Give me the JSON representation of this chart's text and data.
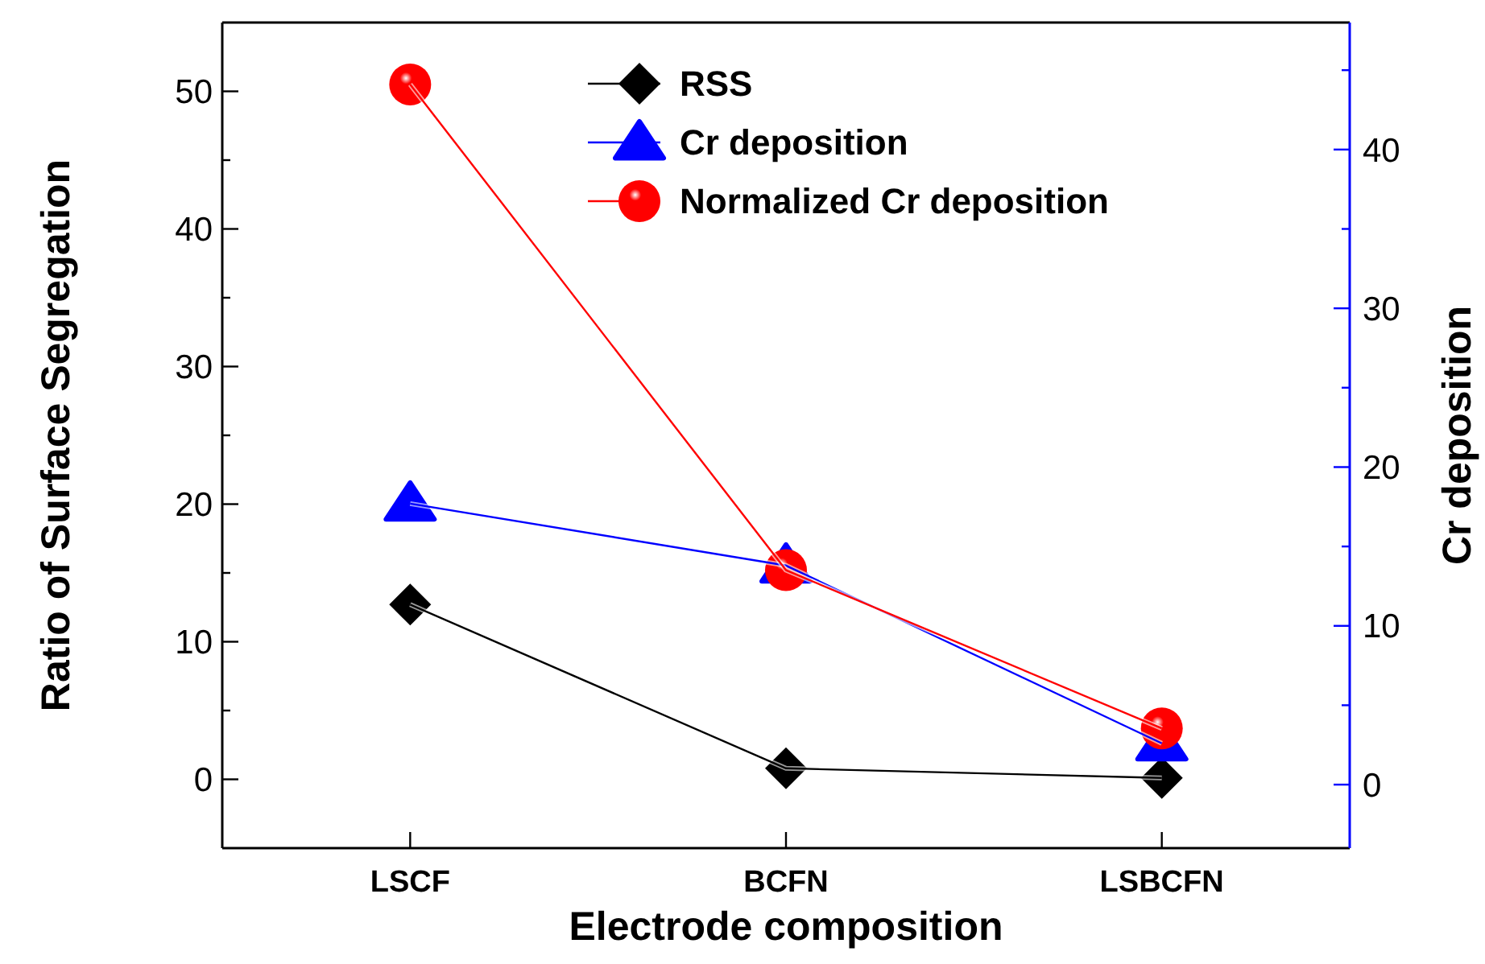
{
  "chart_data": {
    "type": "line",
    "xlabel": "Electrode composition",
    "ylabel": "Ratio of Surface Segregation",
    "y2label": "Cr deposition",
    "categories": [
      "LSCF",
      "BCFN",
      "LSBCFN"
    ],
    "series": [
      {
        "name": "RSS",
        "color": "#000000",
        "marker": "diamond",
        "values": [
          12.7,
          0.8,
          0.1
        ]
      },
      {
        "name": "Cr deposition",
        "color": "#0000ff",
        "marker": "triangle",
        "axis": "y2",
        "values": [
          17.7,
          13.8,
          2.6
        ]
      },
      {
        "name": "Normalized Cr deposition",
        "color": "#ff0000",
        "marker": "circle",
        "values": [
          50.5,
          15.2,
          3.7
        ]
      }
    ],
    "ylim": [
      -5,
      55
    ],
    "yticks": [
      0,
      {
        "value": 5,
        "label": null
      },
      10,
      {
        "value": 15,
        "label": null
      },
      20,
      {
        "value": 25,
        "label": null
      },
      30,
      {
        "value": 35,
        "label": null
      },
      40,
      {
        "value": 45,
        "label": null
      },
      50
    ],
    "y2lim": [
      -4,
      48
    ],
    "y2ticks": [
      0,
      {
        "value": 5,
        "label": null
      },
      10,
      {
        "value": 15,
        "label": null
      },
      20,
      {
        "value": 25,
        "label": null
      },
      30,
      {
        "value": 35,
        "label": null
      },
      40,
      {
        "value": 45,
        "label": null
      }
    ],
    "legend": "top",
    "grid": false,
    "line_style": "solid"
  }
}
